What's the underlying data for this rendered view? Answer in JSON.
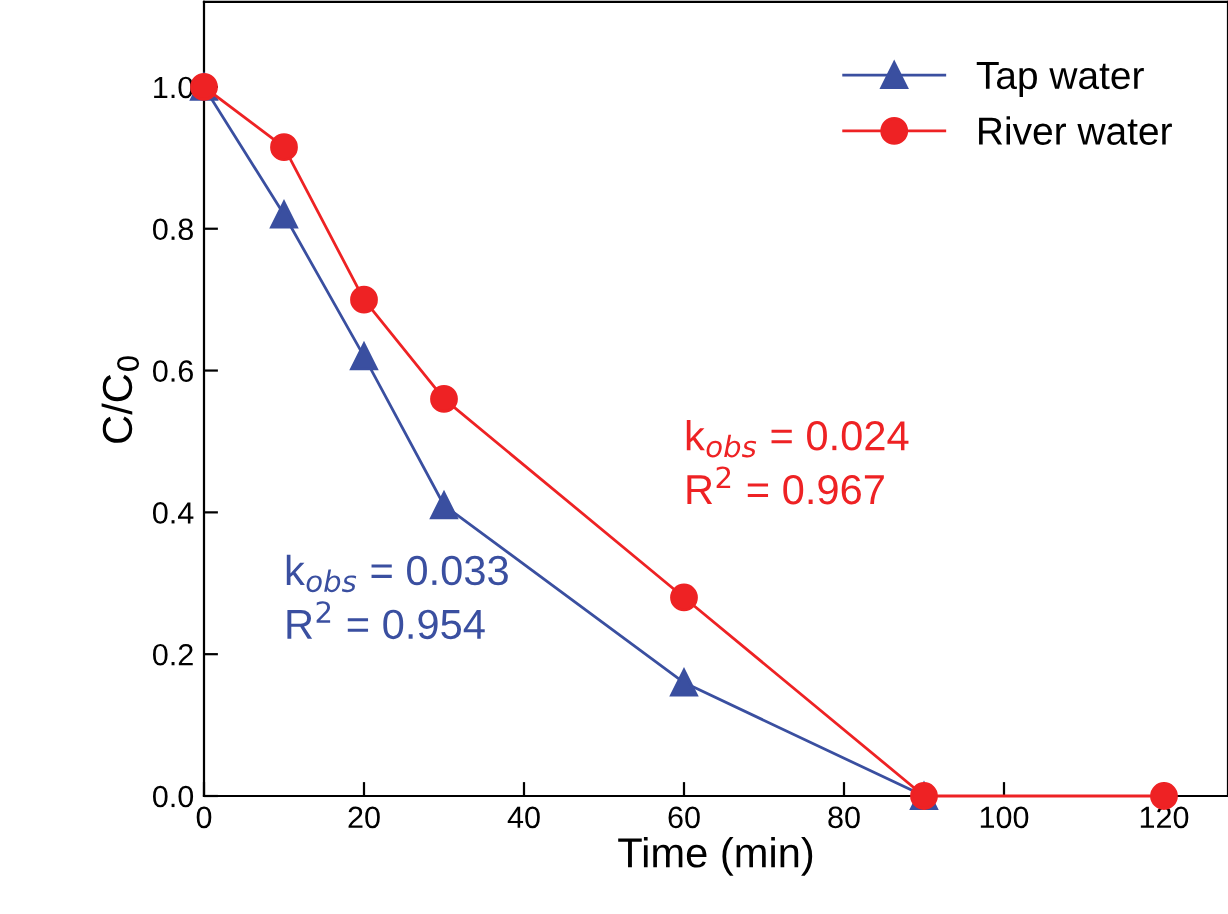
{
  "chart_data": {
    "type": "line",
    "xlabel": "Time (min)",
    "ylabel": "C/C$_{0}$",
    "series": [
      {
        "name": "Tap water",
        "color": "#3a4fa0",
        "marker": "triangle",
        "x": [
          0,
          10,
          20,
          30,
          60,
          90
        ],
        "values": [
          1.0,
          0.82,
          0.62,
          0.41,
          0.16,
          0.0
        ]
      },
      {
        "name": "River water",
        "color": "#ee2224",
        "marker": "circle",
        "x": [
          0,
          10,
          20,
          30,
          60,
          90,
          120
        ],
        "values": [
          1.0,
          0.915,
          0.7,
          0.56,
          0.28,
          0.0,
          0.0
        ]
      }
    ],
    "xlim": [
      0,
      128
    ],
    "xticks": [
      0,
      20,
      40,
      60,
      80,
      100,
      120
    ],
    "ylim": [
      0,
      1.12
    ],
    "yticks": [
      {
        "value": 0,
        "label": "0.0"
      },
      {
        "value": 0.2,
        "label": "0.2"
      },
      {
        "value": 0.4,
        "label": "0.4"
      },
      {
        "value": 0.6,
        "label": "0.6"
      },
      {
        "value": 0.8,
        "label": "0.8"
      },
      {
        "value": 1.0,
        "label": "1.0"
      }
    ],
    "legend": "top right",
    "grid": false,
    "annotations": [
      "k$_{obs}$ = 0.024\nR$^{2}$ = 0.967",
      "k$_{obs}$ = 0.033\nR$^{2}$ = 0.954"
    ]
  }
}
